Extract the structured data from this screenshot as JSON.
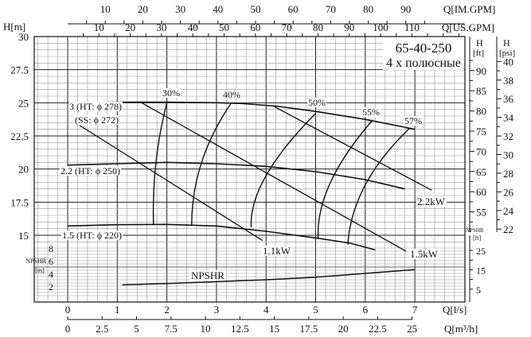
{
  "chart_data": {
    "type": "line",
    "title": "65-40-250",
    "subtitle": "4 х полюсные",
    "x_axes": {
      "bottom_primary": {
        "label": "Q[l/s]",
        "range": [
          0,
          7
        ],
        "ticks": [
          0,
          1,
          2,
          3,
          4,
          5,
          6,
          7
        ]
      },
      "bottom_secondary": {
        "label": "Q[m³/h]",
        "ticks": [
          0,
          2.5,
          5,
          7.5,
          10,
          12.5,
          15,
          17.5,
          20,
          22.5,
          25
        ]
      },
      "top_primary": {
        "label": "Q[IM.GPM]",
        "ticks": [
          10,
          20,
          30,
          40,
          50,
          60,
          70,
          80,
          90
        ]
      },
      "top_secondary": {
        "label": "Q[US.GPM]",
        "ticks": [
          10,
          20,
          30,
          40,
          50,
          60,
          70,
          80,
          90,
          100,
          110
        ]
      }
    },
    "y_axes": {
      "head_m": {
        "label": "H[m]",
        "range": [
          15,
          30
        ],
        "ticks": [
          15,
          17.5,
          20,
          22.5,
          25,
          27.5,
          30
        ]
      },
      "head_ft": {
        "label": "H [ft]",
        "ticks": [
          55,
          60,
          65,
          70,
          75,
          80,
          85,
          90
        ]
      },
      "head_psi": {
        "label": "H [psi]",
        "ticks": [
          22,
          24,
          26,
          28,
          30,
          32,
          34,
          36,
          38,
          40
        ]
      },
      "npshr_m": {
        "label": "NPSHR [m]",
        "ticks": [
          2,
          4,
          6,
          8
        ]
      },
      "npshr_ft": {
        "label": "NPSHR [ft]",
        "ticks": [
          5,
          15,
          25
        ]
      }
    },
    "grid": true,
    "head_curves": [
      {
        "label_a": "3 (HT: ϕ 278)",
        "label_b": "(SS: ϕ 272)",
        "points": [
          [
            0,
            25
          ],
          [
            1,
            25.05
          ],
          [
            2,
            25.05
          ],
          [
            3,
            25
          ],
          [
            3.5,
            24.95
          ],
          [
            4.2,
            24.75
          ],
          [
            5,
            24.35
          ],
          [
            6,
            23.75
          ],
          [
            7,
            23.0
          ]
        ]
      },
      {
        "label_a": "2.2 (HT: ϕ 250)",
        "points": [
          [
            0,
            20.3
          ],
          [
            1,
            20.4
          ],
          [
            2,
            20.5
          ],
          [
            3,
            20.4
          ],
          [
            4,
            20.2
          ],
          [
            5,
            19.8
          ],
          [
            6,
            19.2
          ],
          [
            6.8,
            18.5
          ]
        ]
      },
      {
        "label_a": "1.5 (HT: ϕ 220)",
        "points": [
          [
            0,
            15.7
          ],
          [
            1,
            15.8
          ],
          [
            2,
            15.82
          ],
          [
            3,
            15.7
          ],
          [
            4,
            15.3
          ],
          [
            5,
            14.8
          ],
          [
            5.7,
            14.4
          ],
          [
            6.2,
            13.9
          ]
        ]
      }
    ],
    "power_lines": [
      {
        "label": "1.1kW",
        "points": [
          [
            0.24,
            23.3
          ],
          [
            3.93,
            14.6
          ]
        ]
      },
      {
        "label": "1.5kW",
        "points": [
          [
            1.49,
            25.0
          ],
          [
            6.82,
            13.8
          ]
        ]
      },
      {
        "label": "2.2kW",
        "points": [
          [
            4.17,
            24.7
          ],
          [
            7.34,
            18.4
          ]
        ]
      }
    ],
    "efficiency_curves": [
      {
        "label": "30%",
        "points": [
          [
            1.73,
            15.8
          ],
          [
            1.78,
            20.5
          ],
          [
            2.0,
            25.0
          ]
        ]
      },
      {
        "label": "40%",
        "points": [
          [
            2.5,
            15.8
          ],
          [
            2.7,
            20.5
          ],
          [
            3.3,
            25.0
          ]
        ]
      },
      {
        "label": "50%",
        "points": [
          [
            3.7,
            15.6
          ],
          [
            4.0,
            19.5
          ],
          [
            5.0,
            24.2
          ]
        ]
      },
      {
        "label": "55%",
        "points": [
          [
            5.05,
            14.8
          ],
          [
            5.3,
            19.0
          ],
          [
            6.15,
            23.7
          ]
        ]
      },
      {
        "label": "57%",
        "points": [
          [
            5.65,
            14.3
          ],
          [
            6.0,
            18.8
          ],
          [
            6.9,
            23.1
          ]
        ]
      }
    ],
    "npshr_curve": {
      "label": "NPSHR",
      "points": [
        [
          1.1,
          2.2
        ],
        [
          2,
          2.4
        ],
        [
          3,
          2.7
        ],
        [
          4,
          3.0
        ],
        [
          5,
          3.4
        ],
        [
          6,
          4.0
        ],
        [
          7,
          4.6
        ]
      ]
    }
  }
}
